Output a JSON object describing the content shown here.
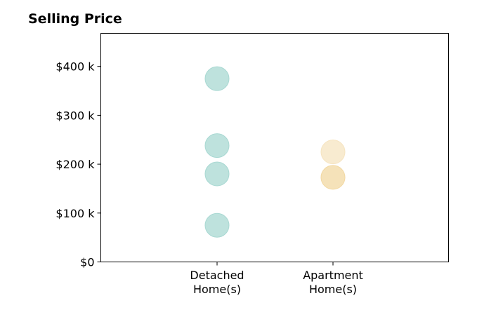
{
  "chart_data": {
    "type": "scatter",
    "title": "Selling Price",
    "xlabel": "",
    "ylabel": "",
    "categories": [
      [
        "Detached",
        "Home(s)"
      ],
      [
        "Apartment",
        "Home(s)"
      ]
    ],
    "ylim": [
      0,
      470000
    ],
    "yticks": [
      {
        "value": 0,
        "label": "$0"
      },
      {
        "value": 100000,
        "label": "$100 k"
      },
      {
        "value": 200000,
        "label": "$200 k"
      },
      {
        "value": 300000,
        "label": "$300 k"
      },
      {
        "value": 400000,
        "label": "$400 k"
      }
    ],
    "grid": false,
    "series": [
      {
        "category": 0,
        "color": "#a8d8d2",
        "points": [
          {
            "y": 375000
          },
          {
            "y": 238000
          },
          {
            "y": 180000
          },
          {
            "y": 75000
          }
        ]
      },
      {
        "category": 1,
        "color": "#f2d8a2",
        "points": [
          {
            "y": 225000,
            "color": "#f6e4c0"
          },
          {
            "y": 173000
          }
        ]
      }
    ]
  }
}
